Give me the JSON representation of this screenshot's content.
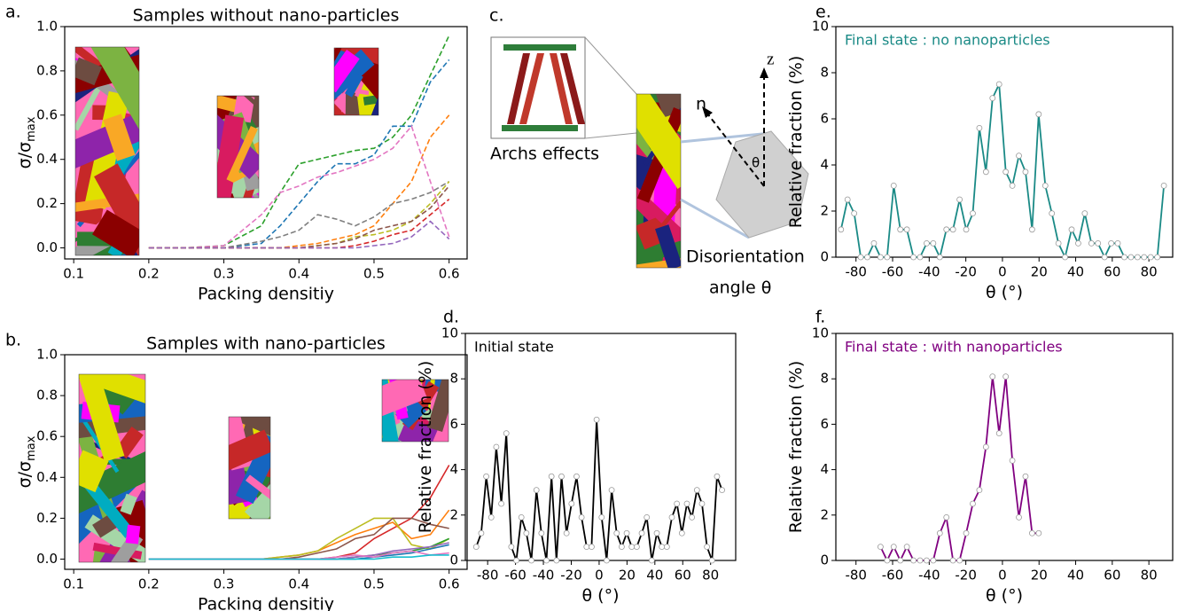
{
  "chart_data": [
    {
      "type": "line",
      "panel_label": "a.",
      "title": "Samples without nano-particles",
      "xlabel": "Packing densitiy",
      "ylabel": "σ/σ",
      "ylabel_sub": "max",
      "line_style": "dashed",
      "xlim": [
        0.088,
        0.624
      ],
      "xticks": [
        0.1,
        0.2,
        0.3,
        0.4,
        0.5,
        0.6
      ],
      "ylim": [
        -0.05,
        1.0
      ],
      "yticks": [
        {
          "value": 0,
          "label": "0.0"
        },
        0.2,
        0.4,
        0.6,
        0.8,
        {
          "value": 1,
          "label": "1.0"
        }
      ],
      "x": [
        0.2,
        0.25,
        0.3,
        0.35,
        0.375,
        0.4,
        0.425,
        0.45,
        0.475,
        0.5,
        0.525,
        0.55,
        0.575,
        0.6
      ],
      "series": [
        {
          "color": "#2ca02c",
          "values": [
            0,
            0,
            0.01,
            0.1,
            0.25,
            0.38,
            0.4,
            0.42,
            0.44,
            0.45,
            0.5,
            0.6,
            0.78,
            0.96
          ]
        },
        {
          "color": "#1f77b4",
          "values": [
            0,
            0,
            0,
            0.02,
            0.1,
            0.2,
            0.3,
            0.38,
            0.38,
            0.42,
            0.55,
            0.55,
            0.75,
            0.85
          ]
        },
        {
          "color": "#ff7f0e",
          "values": [
            0,
            0,
            0,
            0,
            0,
            0.01,
            0.02,
            0.04,
            0.06,
            0.1,
            0.2,
            0.3,
            0.5,
            0.6
          ]
        },
        {
          "color": "#e377c2",
          "values": [
            0,
            0,
            0.01,
            0.15,
            0.25,
            0.28,
            0.32,
            0.34,
            0.37,
            0.4,
            0.45,
            0.55,
            0.3,
            0.05
          ]
        },
        {
          "color": "#7f7f7f",
          "values": [
            0,
            0,
            0,
            0.03,
            0.05,
            0.08,
            0.15,
            0.13,
            0.1,
            0.14,
            0.2,
            0.22,
            0.25,
            0.3
          ]
        },
        {
          "color": "#bcbd22",
          "values": [
            0,
            0,
            0,
            0,
            0,
            0,
            0.01,
            0.02,
            0.05,
            0.06,
            0.08,
            0.12,
            0.2,
            0.3
          ]
        },
        {
          "color": "#8c564b",
          "values": [
            0,
            0,
            0,
            0,
            0,
            0,
            0.01,
            0.02,
            0.04,
            0.08,
            0.1,
            0.12,
            0.18,
            0.28
          ]
        },
        {
          "color": "#d62728",
          "values": [
            0,
            0,
            0,
            0,
            0,
            0,
            0,
            0,
            0.01,
            0.03,
            0.06,
            0.08,
            0.15,
            0.22
          ]
        },
        {
          "color": "#9467bd",
          "values": [
            0,
            0,
            0,
            0,
            0,
            0,
            0,
            0,
            0,
            0.01,
            0.02,
            0.05,
            0.12,
            0.04
          ]
        }
      ]
    },
    {
      "type": "line",
      "panel_label": "b.",
      "title": "Samples with nano-particles",
      "xlabel": "Packing densitiy",
      "ylabel": "σ/σ",
      "ylabel_sub": "max",
      "line_style": "solid",
      "xlim": [
        0.088,
        0.624
      ],
      "xticks": [
        0.1,
        0.2,
        0.3,
        0.4,
        0.5,
        0.6
      ],
      "ylim": [
        -0.05,
        1.0
      ],
      "yticks": [
        {
          "value": 0,
          "label": "0.0"
        },
        0.2,
        0.4,
        0.6,
        0.8,
        {
          "value": 1,
          "label": "1.0"
        }
      ],
      "x": [
        0.2,
        0.25,
        0.3,
        0.35,
        0.375,
        0.4,
        0.425,
        0.45,
        0.475,
        0.5,
        0.525,
        0.55,
        0.575,
        0.6
      ],
      "series": [
        {
          "color": "#d62728",
          "values": [
            0,
            0,
            0,
            0,
            0,
            0,
            0,
            0.01,
            0.03,
            0.1,
            0.15,
            0.2,
            0.3,
            0.46
          ]
        },
        {
          "color": "#ff7f0e",
          "values": [
            0,
            0,
            0,
            0,
            0.01,
            0.02,
            0.04,
            0.08,
            0.12,
            0.15,
            0.18,
            0.1,
            0.12,
            0.24
          ]
        },
        {
          "color": "#bcbd22",
          "values": [
            0,
            0,
            0,
            0,
            0.01,
            0.02,
            0.04,
            0.1,
            0.15,
            0.2,
            0.2,
            0.07,
            0.05,
            0.1
          ]
        },
        {
          "color": "#8c564b",
          "values": [
            0,
            0,
            0,
            0,
            0,
            0.01,
            0.03,
            0.05,
            0.1,
            0.12,
            0.2,
            0.2,
            0.17,
            0.15
          ]
        },
        {
          "color": "#2ca02c",
          "values": [
            0,
            0,
            0,
            0,
            0,
            0,
            0,
            0,
            0.01,
            0.02,
            0.03,
            0.04,
            0.06,
            0.1
          ]
        },
        {
          "color": "#1f77b4",
          "values": [
            0,
            0,
            0,
            0,
            0,
            0,
            0,
            0,
            0,
            0.01,
            0.02,
            0.03,
            0.05,
            0.07
          ]
        },
        {
          "color": "#9467bd",
          "values": [
            0,
            0,
            0,
            0,
            0,
            0,
            0,
            0,
            0.01,
            0.02,
            0.04,
            0.05,
            0.06,
            0.08
          ]
        },
        {
          "color": "#e377c2",
          "values": [
            0,
            0,
            0,
            0,
            0,
            0,
            0,
            0.01,
            0.02,
            0.01,
            0.03,
            0.04,
            0.02,
            0.03
          ]
        },
        {
          "color": "#17becf",
          "values": [
            0,
            0,
            0,
            0,
            0,
            0,
            0,
            0,
            0,
            0,
            0.01,
            0.01,
            0.02,
            0.02
          ]
        }
      ]
    },
    {
      "type": "line",
      "panel_label": "d.",
      "annotation": "Initial state",
      "annotation_color": "#000000",
      "xlabel": "θ (°)",
      "ylabel": "Relative fraction (%)",
      "markers": true,
      "xlim": [
        -96,
        98
      ],
      "xticks": [
        -80,
        -60,
        -40,
        -20,
        0,
        20,
        40,
        60,
        80
      ],
      "ylim": [
        0,
        10
      ],
      "yticks": [
        0,
        2,
        4,
        6,
        8,
        10
      ],
      "x": [
        -88.2,
        -84.6,
        -81,
        -77.4,
        -73.8,
        -70.2,
        -66.6,
        -63,
        -59.4,
        -55.8,
        -52.2,
        -48.6,
        -45,
        -41.4,
        -37.8,
        -34.2,
        -30.6,
        -27,
        -23.4,
        -19.8,
        -16.2,
        -12.6,
        -9,
        -5.4,
        -1.8,
        1.8,
        5.4,
        9,
        12.6,
        16.2,
        19.8,
        23.4,
        27,
        30.6,
        34.2,
        37.8,
        41.4,
        45,
        48.6,
        52.2,
        55.8,
        59.4,
        63,
        66.6,
        70.2,
        73.8,
        77.4,
        81,
        84.6,
        88.2
      ],
      "series": [
        {
          "color": "#000000",
          "values": [
            0.6,
            1.2,
            3.7,
            1.9,
            5.0,
            2.5,
            5.6,
            0.6,
            0,
            1.9,
            1.2,
            0,
            3.1,
            1.2,
            0,
            3.7,
            0,
            3.7,
            1.2,
            2.5,
            3.7,
            1.9,
            0.6,
            0.6,
            6.2,
            1.9,
            0,
            3.1,
            1.2,
            0.6,
            1.2,
            0.6,
            0.6,
            1.2,
            1.9,
            0,
            1.2,
            0.6,
            0.6,
            1.9,
            2.5,
            1.2,
            2.5,
            1.9,
            3.1,
            2.5,
            0.6,
            0,
            3.7,
            3.1
          ]
        }
      ]
    },
    {
      "type": "line",
      "panel_label": "e.",
      "annotation": "Final state : no nanoparticles",
      "annotation_color": "#1a8a86",
      "xlabel": "θ (°)",
      "ylabel": "Relative fraction (%)",
      "markers": true,
      "xlim": [
        -91,
        93
      ],
      "xticks": [
        -80,
        -60,
        -40,
        -20,
        0,
        20,
        40,
        60,
        80
      ],
      "ylim": [
        0,
        10
      ],
      "yticks": [
        0,
        2,
        4,
        6,
        8,
        10
      ],
      "x": [
        -88.2,
        -84.6,
        -81,
        -77.4,
        -73.8,
        -70.2,
        -66.6,
        -63,
        -59.4,
        -55.8,
        -52.2,
        -48.6,
        -45,
        -41.4,
        -37.8,
        -34.2,
        -30.6,
        -27,
        -23.4,
        -19.8,
        -16.2,
        -12.6,
        -9,
        -5.4,
        -1.8,
        1.8,
        5.4,
        9,
        12.6,
        16.2,
        19.8,
        23.4,
        27,
        30.6,
        34.2,
        37.8,
        41.4,
        45,
        48.6,
        52.2,
        55.8,
        59.4,
        63,
        66.6,
        70.2,
        73.8,
        77.4,
        81,
        84.6,
        88.2
      ],
      "series": [
        {
          "color": "#1a8a86",
          "values": [
            1.2,
            2.5,
            1.9,
            0,
            0,
            0.6,
            0,
            0,
            3.1,
            1.2,
            1.2,
            0,
            0,
            0.6,
            0.6,
            0,
            1.2,
            1.2,
            2.5,
            1.2,
            1.9,
            5.6,
            3.7,
            6.9,
            7.5,
            3.7,
            3.1,
            4.4,
            3.7,
            1.2,
            6.2,
            3.1,
            1.9,
            0.6,
            0,
            1.2,
            0.6,
            1.9,
            0.6,
            0.6,
            0,
            0.6,
            0.6,
            0,
            0,
            0,
            0,
            0,
            0,
            3.1
          ]
        }
      ]
    },
    {
      "type": "line",
      "panel_label": "f.",
      "annotation": "Final state : with nanoparticles",
      "annotation_color": "#800080",
      "xlabel": "θ (°)",
      "ylabel": "Relative fraction (%)",
      "markers": true,
      "xlim": [
        -91,
        93
      ],
      "xticks": [
        -80,
        -60,
        -40,
        -20,
        0,
        20,
        40,
        60,
        80
      ],
      "ylim": [
        0,
        10
      ],
      "yticks": [
        0,
        2,
        4,
        6,
        8,
        10
      ],
      "x": [
        -88.2,
        -84.6,
        -81,
        -77.4,
        -73.8,
        -70.2,
        -66.6,
        -63,
        -59.4,
        -55.8,
        -52.2,
        -48.6,
        -45,
        -41.4,
        -37.8,
        -34.2,
        -30.6,
        -27,
        -23.4,
        -19.8,
        -16.2,
        -12.6,
        -9,
        -5.4,
        -1.8,
        1.8,
        5.4,
        9,
        12.6,
        16.2,
        19.8,
        23.4,
        27,
        30.6,
        34.2,
        37.8,
        41.4,
        45,
        48.6,
        52.2,
        55.8,
        59.4,
        63,
        66.6,
        70.2,
        73.8,
        77.4,
        81,
        84.6,
        88.2
      ],
      "series": [
        {
          "color": "#800080",
          "values": [
            null,
            null,
            null,
            null,
            null,
            null,
            0.6,
            0,
            0.6,
            0,
            0.6,
            0,
            0,
            0,
            0,
            1.2,
            1.9,
            0,
            0,
            1.2,
            2.5,
            3.1,
            5.0,
            8.1,
            5.6,
            8.1,
            4.4,
            1.9,
            3.7,
            1.2,
            1.2,
            null,
            null,
            null,
            null,
            null,
            null,
            null,
            null,
            null,
            null,
            null,
            null,
            null,
            null,
            null,
            null,
            null,
            null,
            null
          ]
        }
      ]
    }
  ],
  "panel_c": {
    "label": "c.",
    "inset_caption": "Archs effects",
    "caption_line1": "Disorientation",
    "caption_line2": "angle θ",
    "n_label": "n",
    "z_label": "z",
    "angle_label": "θ"
  }
}
